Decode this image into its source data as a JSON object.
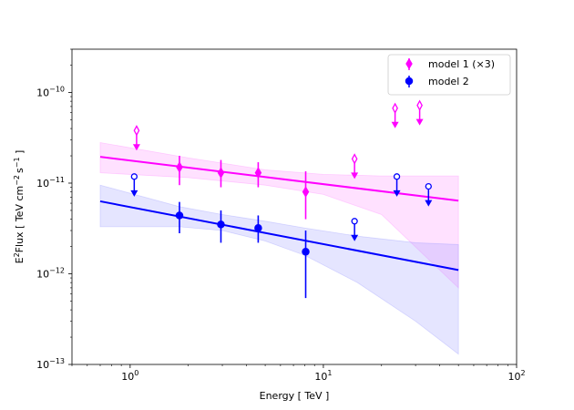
{
  "chart_data": {
    "type": "scatter",
    "title": "",
    "xlabel": "Energy [ TeV ]",
    "ylabel_parts": {
      "e": "E",
      "e_sup": "2",
      "flux": "Flux [ TeV cm",
      "cm_sup": "−2",
      "s": "s",
      "s_sup": "−1",
      "close": " ]"
    },
    "x_scale": "log",
    "y_scale": "log",
    "xlim": [
      0.5,
      100
    ],
    "ylim": [
      1e-13,
      3e-10
    ],
    "x_ticks": [
      {
        "value": 1,
        "base": "10",
        "exp": "0"
      },
      {
        "value": 10,
        "base": "10",
        "exp": "1"
      },
      {
        "value": 100,
        "base": "10",
        "exp": "2"
      }
    ],
    "y_ticks": [
      {
        "value": 1e-13,
        "base": "10",
        "exp": "−13"
      },
      {
        "value": 1e-12,
        "base": "10",
        "exp": "−12"
      },
      {
        "value": 1e-11,
        "base": "10",
        "exp": "−11"
      },
      {
        "value": 1e-10,
        "base": "10",
        "exp": "−10"
      }
    ],
    "legend_position": "top-right",
    "legend": [
      {
        "label": "model 1 (×3)",
        "marker": "diamond",
        "color": "#ff00ff"
      },
      {
        "label": "model 2",
        "marker": "circle",
        "color": "#0000ff"
      }
    ],
    "series": [
      {
        "name": "model 1 (×3)",
        "color": "#ff00ff",
        "band_color": "#ff88ff",
        "marker": "diamond",
        "fit_line": {
          "x": [
            0.7,
            50
          ],
          "y": [
            1.95e-11,
            6.4e-12
          ]
        },
        "band_upper": {
          "x": [
            0.7,
            2,
            5,
            10,
            20,
            50
          ],
          "y": [
            2.8e-11,
            1.9e-11,
            1.4e-11,
            1.25e-11,
            1.2e-11,
            1.2e-11
          ]
        },
        "band_lower": {
          "x": [
            0.7,
            2,
            5,
            10,
            20,
            50
          ],
          "y": [
            1.3e-11,
            1.15e-11,
            9.5e-12,
            7.5e-12,
            4.5e-12,
            7e-13
          ]
        },
        "points": [
          {
            "x": 1.8,
            "y": 1.5e-11,
            "ylo": 9.5e-12,
            "yhi": 2e-11
          },
          {
            "x": 2.95,
            "y": 1.3e-11,
            "ylo": 9e-12,
            "yhi": 1.8e-11
          },
          {
            "x": 4.6,
            "y": 1.3e-11,
            "ylo": 9e-12,
            "yhi": 1.7e-11
          },
          {
            "x": 8.1,
            "y": 8e-12,
            "ylo": 4e-12,
            "yhi": 1.35e-11
          }
        ],
        "upper_limits": [
          {
            "x": 1.08,
            "y": 3.8e-11
          },
          {
            "x": 14.5,
            "y": 1.85e-11
          },
          {
            "x": 23.5,
            "y": 6.7e-11
          },
          {
            "x": 31.5,
            "y": 7.2e-11
          }
        ]
      },
      {
        "name": "model 2",
        "color": "#0000ff",
        "band_color": "#9999ff",
        "marker": "circle",
        "fit_line": {
          "x": [
            0.7,
            50
          ],
          "y": [
            6.3e-12,
            1.1e-12
          ]
        },
        "band_upper": {
          "x": [
            0.7,
            1.8,
            3,
            5,
            8,
            15,
            30,
            50
          ],
          "y": [
            9.5e-12,
            5.5e-12,
            4.5e-12,
            3.8e-12,
            3.2e-12,
            2.6e-12,
            2.2e-12,
            2.1e-12
          ]
        },
        "band_lower": {
          "x": [
            0.7,
            1.8,
            3,
            5,
            8,
            15,
            30,
            50
          ],
          "y": [
            3.3e-12,
            3.3e-12,
            3e-12,
            2.3e-12,
            1.6e-12,
            8e-13,
            3e-13,
            1.3e-13
          ]
        },
        "points": [
          {
            "x": 1.8,
            "y": 4.4e-12,
            "ylo": 2.8e-12,
            "yhi": 6.2e-12
          },
          {
            "x": 2.95,
            "y": 3.5e-12,
            "ylo": 2.2e-12,
            "yhi": 5e-12
          },
          {
            "x": 4.6,
            "y": 3.2e-12,
            "ylo": 2.2e-12,
            "yhi": 4.4e-12
          },
          {
            "x": 8.1,
            "y": 1.75e-12,
            "ylo": 5.4e-13,
            "yhi": 3e-12
          }
        ],
        "upper_limits": [
          {
            "x": 1.05,
            "y": 1.18e-11
          },
          {
            "x": 14.5,
            "y": 3.8e-12
          },
          {
            "x": 24,
            "y": 1.18e-11
          },
          {
            "x": 35,
            "y": 9.2e-12
          }
        ]
      }
    ]
  }
}
